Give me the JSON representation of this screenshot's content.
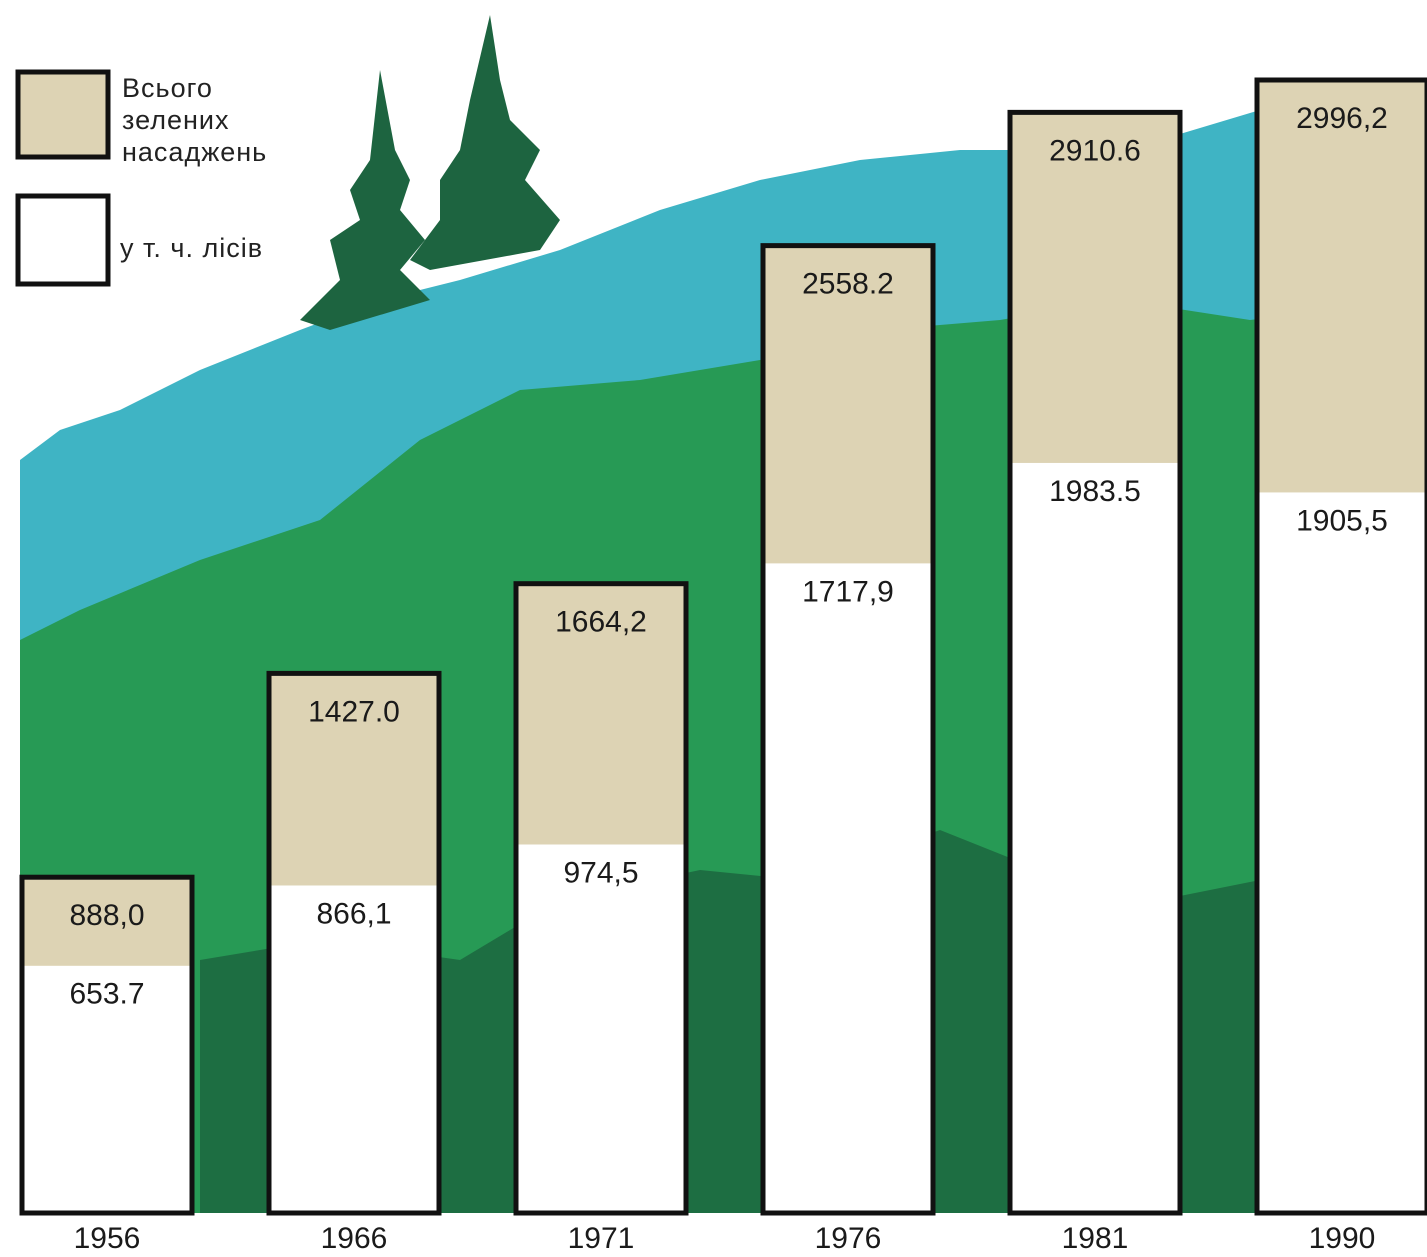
{
  "chart_data": {
    "type": "bar",
    "categories": [
      "1956",
      "1966",
      "1971",
      "1976",
      "1981",
      "1990"
    ],
    "series": [
      {
        "name": "Всього зелених насаджень",
        "color": "#ddd3b4",
        "values": [
          888.0,
          1427.0,
          1664.2,
          2558.2,
          2910.6,
          2996.2
        ],
        "value_labels": [
          "888,0",
          "1427.0",
          "1664,2",
          "2558.2",
          "2910.6",
          "2996,2"
        ]
      },
      {
        "name": "у т. ч. лісів",
        "color": "#ffffff",
        "values": [
          653.7,
          866.1,
          974.5,
          1717.9,
          1983.5,
          1905.5
        ],
        "value_labels": [
          "653.7",
          "866,1",
          "974,5",
          "1717,9",
          "1983.5",
          "1905,5"
        ]
      }
    ]
  }
}
